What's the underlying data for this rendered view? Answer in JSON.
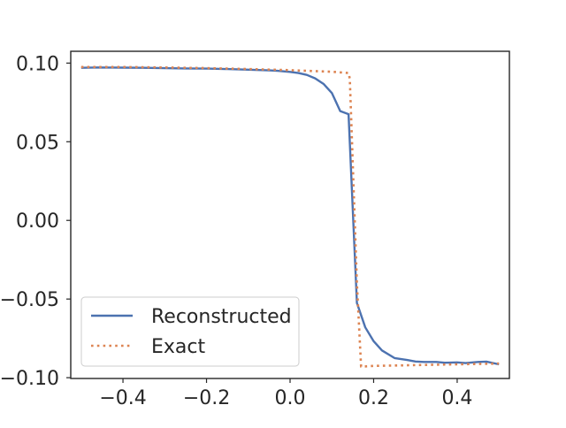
{
  "chart_data": {
    "type": "line",
    "title": "",
    "xlabel": "",
    "ylabel": "",
    "xlim": [
      -0.525,
      0.525
    ],
    "ylim": [
      -0.1005,
      0.1075
    ],
    "xticks": [
      -0.4,
      -0.2,
      0.0,
      0.2,
      0.4
    ],
    "xtick_labels": [
      "−0.4",
      "−0.2",
      "0.0",
      "0.2",
      "0.4"
    ],
    "yticks": [
      -0.1,
      -0.05,
      0.0,
      0.05,
      0.1
    ],
    "ytick_labels": [
      "−0.10",
      "−0.05",
      "0.00",
      "0.05",
      "0.10"
    ],
    "grid": false,
    "legend_position": "lower-left",
    "series": [
      {
        "name": "Reconstructed",
        "style": "solid",
        "color": "#4c72b0",
        "x": [
          -0.5,
          -0.46,
          -0.4,
          -0.35,
          -0.3,
          -0.25,
          -0.2,
          -0.15,
          -0.1,
          -0.05,
          -0.03,
          0.0,
          0.02,
          0.04,
          0.06,
          0.08,
          0.1,
          0.12,
          0.14,
          0.16,
          0.18,
          0.2,
          0.22,
          0.25,
          0.28,
          0.3,
          0.32,
          0.35,
          0.37,
          0.4,
          0.42,
          0.45,
          0.47,
          0.5
        ],
        "y": [
          0.097,
          0.0972,
          0.0971,
          0.097,
          0.0968,
          0.0966,
          0.0965,
          0.0962,
          0.0958,
          0.0954,
          0.0951,
          0.0944,
          0.0937,
          0.0925,
          0.0903,
          0.0868,
          0.081,
          0.0695,
          0.0675,
          -0.0525,
          -0.068,
          -0.0768,
          -0.0827,
          -0.0875,
          -0.0887,
          -0.0897,
          -0.09,
          -0.09,
          -0.0905,
          -0.0903,
          -0.0907,
          -0.09,
          -0.0898,
          -0.0915
        ]
      },
      {
        "name": "Exact",
        "style": "dotted",
        "color": "#dd8452",
        "x": [
          -0.5,
          -0.4,
          -0.3,
          -0.2,
          -0.1,
          0.0,
          0.1,
          0.14,
          0.143,
          0.16,
          0.17,
          0.2,
          0.3,
          0.4,
          0.5
        ],
        "y": [
          0.0975,
          0.0975,
          0.0972,
          0.0968,
          0.0962,
          0.0955,
          0.0945,
          0.0937,
          0.09,
          -0.04,
          -0.093,
          -0.0925,
          -0.092,
          -0.0915,
          -0.091
        ]
      }
    ]
  }
}
